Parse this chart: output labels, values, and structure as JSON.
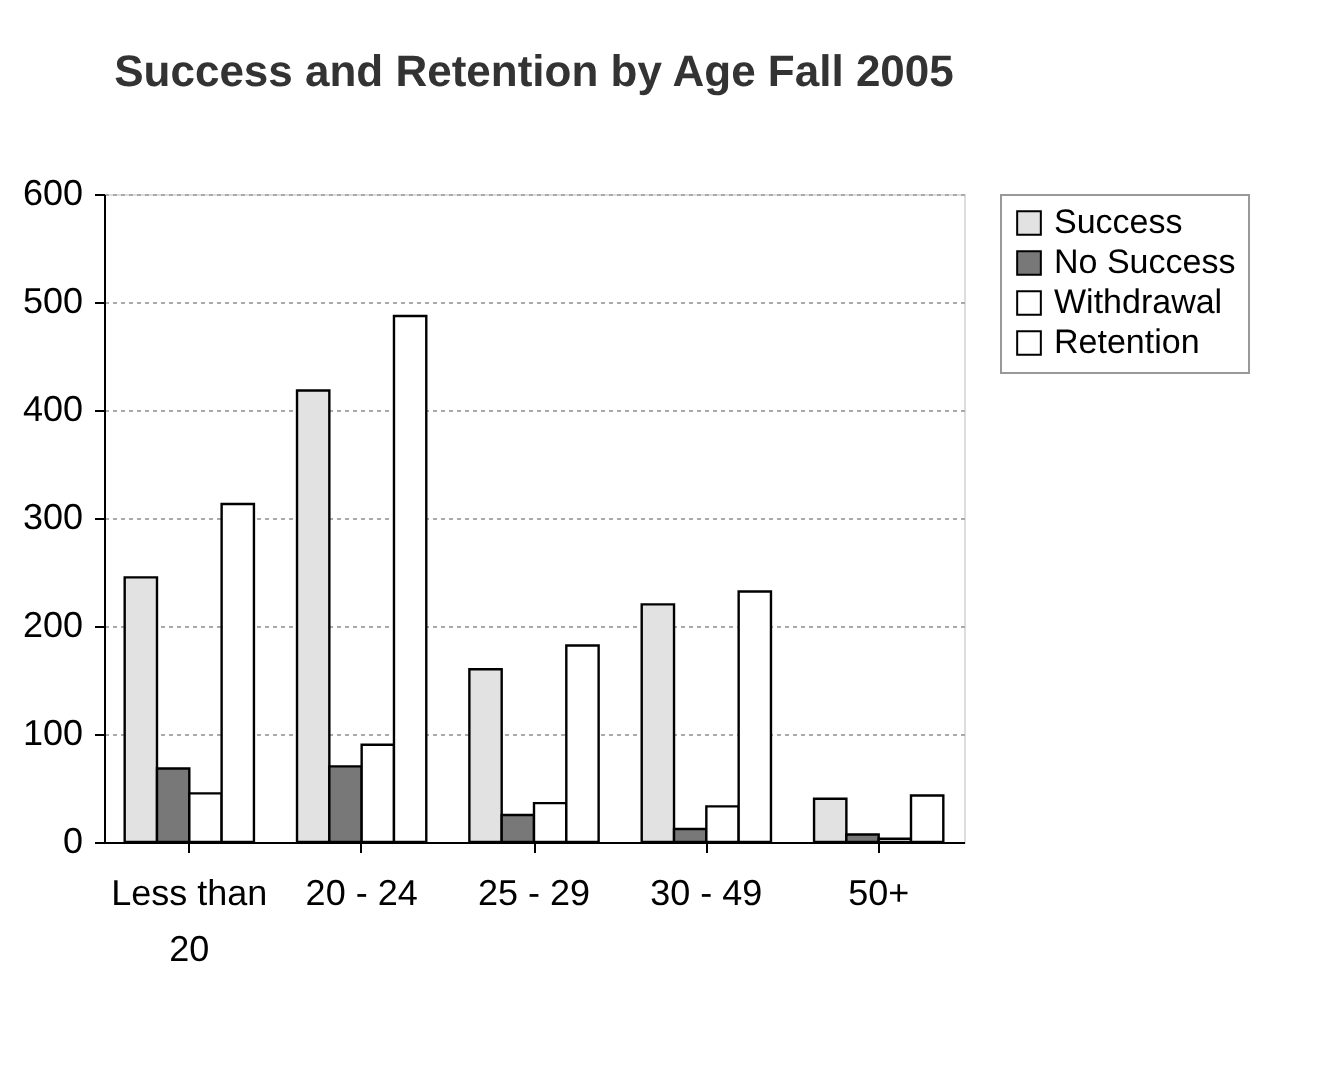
{
  "chart_data": {
    "type": "bar",
    "title": "Success and Retention by Age Fall 2005",
    "categories": [
      "Less than 20",
      "20 - 24",
      "25 - 29",
      "30 - 49",
      "50+"
    ],
    "series": [
      {
        "name": "Success",
        "color": "#e2e2e2",
        "values": [
          245,
          418,
          160,
          220,
          40
        ]
      },
      {
        "name": "No Success",
        "color": "#787878",
        "values": [
          68,
          70,
          25,
          12,
          7
        ]
      },
      {
        "name": "Withdrawal",
        "color": "#ffffff",
        "values": [
          45,
          90,
          36,
          33,
          3
        ]
      },
      {
        "name": "Retention",
        "color": "#ffffff",
        "values": [
          313,
          487,
          182,
          232,
          43
        ]
      }
    ],
    "ylim": [
      0,
      600
    ],
    "yticks": [
      0,
      100,
      200,
      300,
      400,
      500,
      600
    ],
    "grid": "y",
    "legend": "right"
  }
}
